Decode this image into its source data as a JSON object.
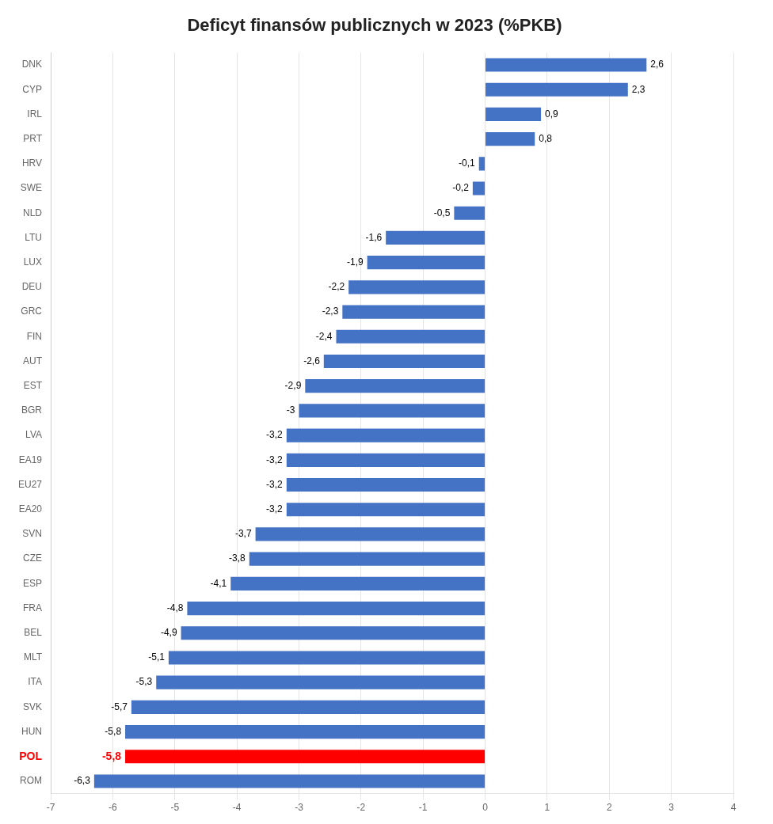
{
  "chart_data": {
    "type": "bar",
    "orientation": "horizontal",
    "title": "Deficyt finansów publicznych w 2023 (%PKB)",
    "categories": [
      "DNK",
      "CYP",
      "IRL",
      "PRT",
      "HRV",
      "SWE",
      "NLD",
      "LTU",
      "LUX",
      "DEU",
      "GRC",
      "FIN",
      "AUT",
      "EST",
      "BGR",
      "LVA",
      "EA19",
      "EU27",
      "EA20",
      "SVN",
      "CZE",
      "ESP",
      "FRA",
      "BEL",
      "MLT",
      "ITA",
      "SVK",
      "HUN",
      "POL",
      "ROM"
    ],
    "values": [
      2.6,
      2.3,
      0.9,
      0.8,
      -0.1,
      -0.2,
      -0.5,
      -1.6,
      -1.9,
      -2.2,
      -2.3,
      -2.4,
      -2.6,
      -2.9,
      -3.0,
      -3.2,
      -3.2,
      -3.2,
      -3.2,
      -3.7,
      -3.8,
      -4.1,
      -4.8,
      -4.9,
      -5.1,
      -5.3,
      -5.7,
      -5.8,
      -5.8,
      -6.3
    ],
    "value_labels": [
      "2,6",
      "2,3",
      "0,9",
      "0,8",
      "-0,1",
      "-0,2",
      "-0,5",
      "-1,6",
      "-1,9",
      "-2,2",
      "-2,3",
      "-2,4",
      "-2,6",
      "-2,9",
      "-3",
      "-3,2",
      "-3,2",
      "-3,2",
      "-3,2",
      "-3,7",
      "-3,8",
      "-4,1",
      "-4,8",
      "-4,9",
      "-5,1",
      "-5,3",
      "-5,7",
      "-5,8",
      "-5,8",
      "-6,3"
    ],
    "colors": [
      "#4472C4",
      "#4472C4",
      "#4472C4",
      "#4472C4",
      "#4472C4",
      "#4472C4",
      "#4472C4",
      "#4472C4",
      "#4472C4",
      "#4472C4",
      "#4472C4",
      "#4472C4",
      "#4472C4",
      "#4472C4",
      "#4472C4",
      "#4472C4",
      "#4472C4",
      "#4472C4",
      "#4472C4",
      "#4472C4",
      "#4472C4",
      "#4472C4",
      "#4472C4",
      "#4472C4",
      "#4472C4",
      "#4472C4",
      "#4472C4",
      "#4472C4",
      "#FF0000",
      "#4472C4"
    ],
    "xlim": [
      -7,
      4
    ],
    "xticks": [
      -7,
      -6,
      -5,
      -4,
      -3,
      -2,
      -1,
      0,
      1,
      2,
      3,
      4
    ],
    "grid": true,
    "data_labels": true
  }
}
